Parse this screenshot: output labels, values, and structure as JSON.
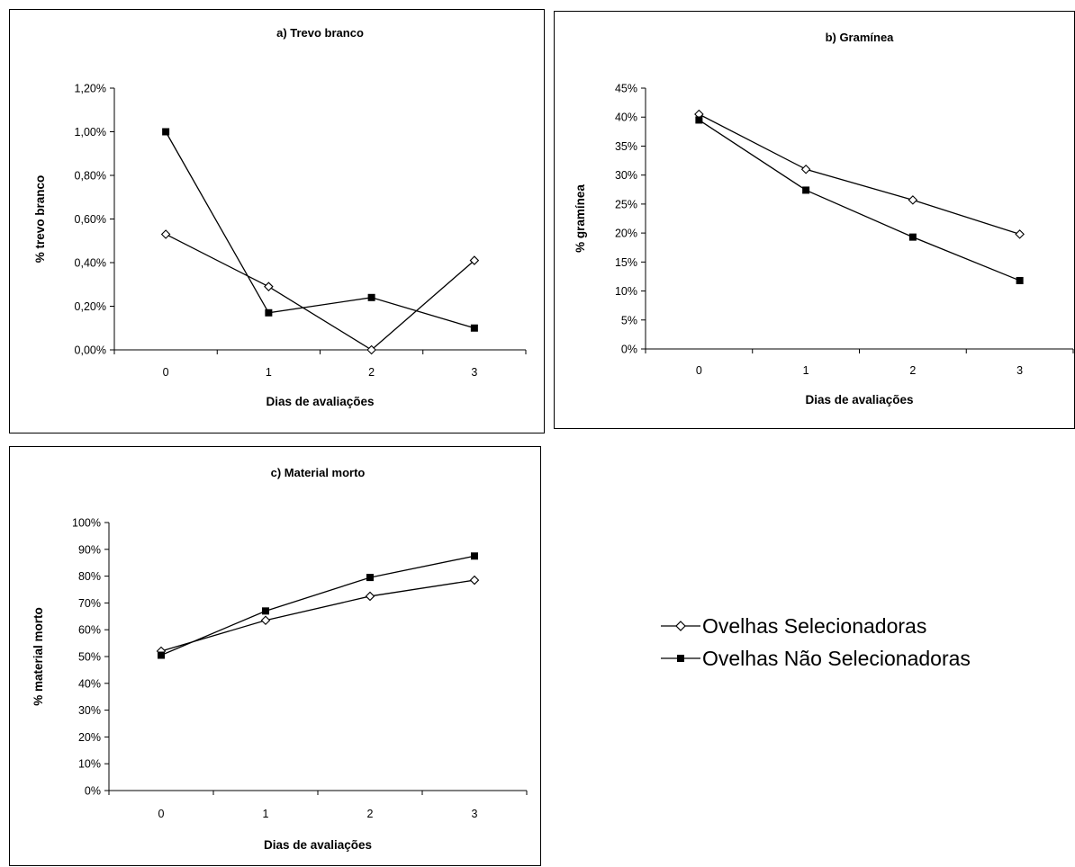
{
  "colors": {
    "line": "#000000",
    "background": "#ffffff",
    "open_marker_fill": "#ffffff",
    "filled_marker_fill": "#000000"
  },
  "legend": {
    "placement": "right of panel c",
    "items": [
      {
        "label": "Ovelhas Selecionadoras",
        "marker": "open-diamond"
      },
      {
        "label": "Ovelhas Não Selecionadoras",
        "marker": "filled-square"
      }
    ]
  },
  "chart_data": [
    {
      "id": "a",
      "type": "line",
      "title": "a) Trevo branco",
      "xlabel": "Dias de avaliações",
      "ylabel": "% trevo branco",
      "categories": [
        "0",
        "1",
        "2",
        "3"
      ],
      "ylim": [
        0,
        1.2
      ],
      "yticks": [
        0,
        0.2,
        0.4,
        0.6,
        0.8,
        1.0,
        1.2
      ],
      "ytick_labels": [
        "0,00%",
        "0,20%",
        "0,40%",
        "0,60%",
        "0,80%",
        "1,00%",
        "1,20%"
      ],
      "grid": false,
      "series": [
        {
          "name": "Ovelhas Selecionadoras",
          "marker": "open-diamond",
          "values": [
            0.53,
            0.29,
            0.0,
            0.41
          ]
        },
        {
          "name": "Ovelhas Não Selecionadoras",
          "marker": "filled-square",
          "values": [
            1.0,
            0.17,
            0.24,
            0.1
          ]
        }
      ]
    },
    {
      "id": "b",
      "type": "line",
      "title": "b) Gramínea",
      "xlabel": "Dias de avaliações",
      "ylabel": "% gramínea",
      "categories": [
        "0",
        "1",
        "2",
        "3"
      ],
      "ylim": [
        0,
        45
      ],
      "yticks": [
        0,
        5,
        10,
        15,
        20,
        25,
        30,
        35,
        40,
        45
      ],
      "ytick_labels": [
        "0%",
        "5%",
        "10%",
        "15%",
        "20%",
        "25%",
        "30%",
        "35%",
        "40%",
        "45%"
      ],
      "grid": false,
      "series": [
        {
          "name": "Ovelhas Selecionadoras",
          "marker": "open-diamond",
          "values": [
            40.5,
            31,
            25.7,
            19.8
          ]
        },
        {
          "name": "Ovelhas Não Selecionadoras",
          "marker": "filled-square",
          "values": [
            39.5,
            27.4,
            19.3,
            11.8
          ]
        }
      ]
    },
    {
      "id": "c",
      "type": "line",
      "title": "c) Material morto",
      "xlabel": "Dias de avaliações",
      "ylabel": "% material morto",
      "categories": [
        "0",
        "1",
        "2",
        "3"
      ],
      "ylim": [
        0,
        100
      ],
      "yticks": [
        0,
        10,
        20,
        30,
        40,
        50,
        60,
        70,
        80,
        90,
        100
      ],
      "ytick_labels": [
        "0%",
        "10%",
        "20%",
        "30%",
        "40%",
        "50%",
        "60%",
        "70%",
        "80%",
        "90%",
        "100%"
      ],
      "grid": false,
      "series": [
        {
          "name": "Ovelhas Selecionadoras",
          "marker": "open-diamond",
          "values": [
            52,
            63.5,
            72.5,
            78.5
          ]
        },
        {
          "name": "Ovelhas Não Selecionadoras",
          "marker": "filled-square",
          "values": [
            50.5,
            67,
            79.5,
            87.5
          ]
        }
      ]
    }
  ]
}
